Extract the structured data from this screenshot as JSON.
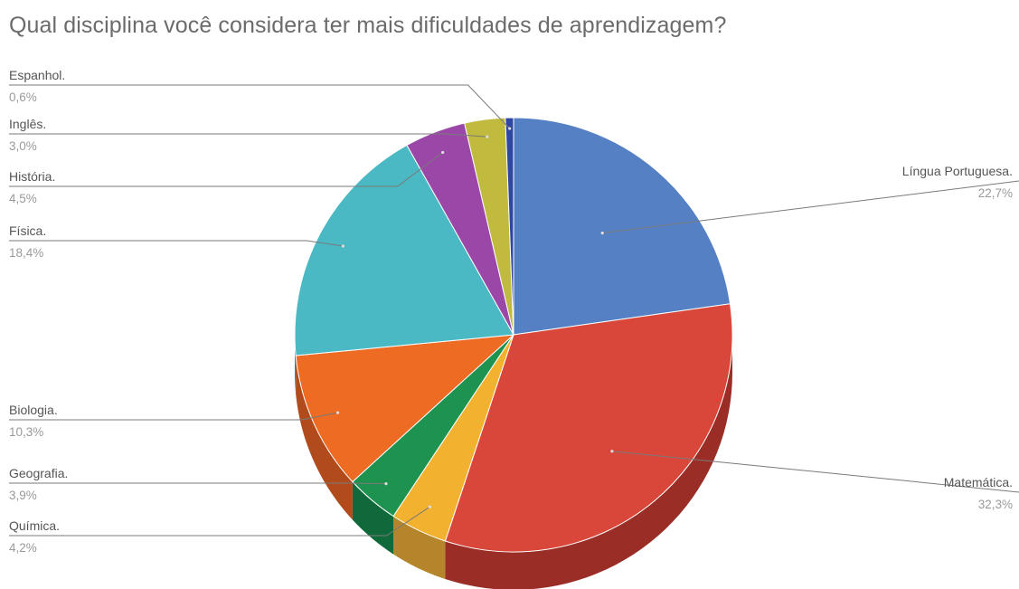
{
  "chart_data": {
    "type": "pie",
    "title": "Qual disciplina você considera ter mais dificuldades de aprendizagem?",
    "three_d": true,
    "slices": [
      {
        "label": "Língua Portuguesa.",
        "value": 22.7,
        "value_label": "22,7%",
        "color": "#5580c3",
        "side_color": "#3a5a8c"
      },
      {
        "label": "Matemática.",
        "value": 32.3,
        "value_label": "32,3%",
        "color": "#d9473a",
        "side_color": "#9a2e27"
      },
      {
        "label": "Química.",
        "value": 4.2,
        "value_label": "4,2%",
        "color": "#f2b12e",
        "side_color": "#b4852a"
      },
      {
        "label": "Geografia.",
        "value": 3.9,
        "value_label": "3,9%",
        "color": "#1e9350",
        "side_color": "#10693a"
      },
      {
        "label": "Biologia.",
        "value": 10.3,
        "value_label": "10,3%",
        "color": "#ee6b23",
        "side_color": "#b14b1c"
      },
      {
        "label": "Física.",
        "value": 18.4,
        "value_label": "18,4%",
        "color": "#4ab9c3",
        "side_color": "#308790"
      },
      {
        "label": "História.",
        "value": 4.5,
        "value_label": "4,5%",
        "color": "#9a47a8",
        "side_color": "#6c2f76"
      },
      {
        "label": "Inglês.",
        "value": 3.0,
        "value_label": "3,0%",
        "color": "#c0bb3e",
        "side_color": "#8a862a"
      },
      {
        "label": "Espanhol.",
        "value": 0.6,
        "value_label": "0,6%",
        "color": "#2e47a0",
        "side_color": "#1e3070"
      }
    ]
  }
}
